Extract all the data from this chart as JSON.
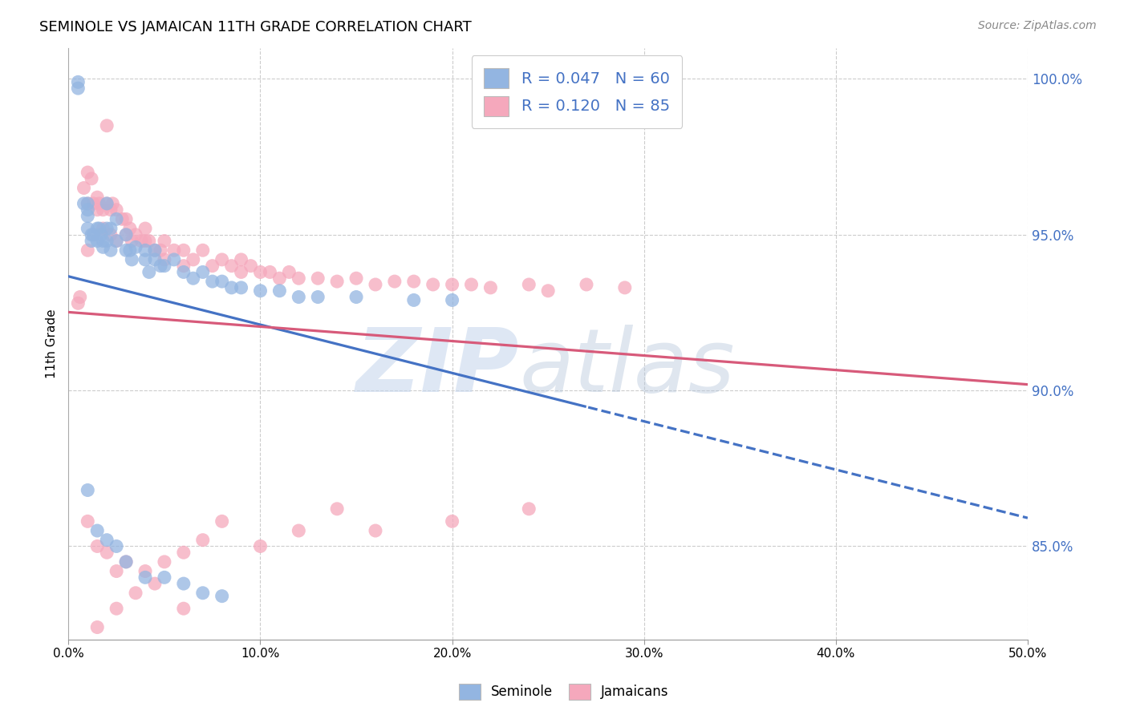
{
  "title": "SEMINOLE VS JAMAICAN 11TH GRADE CORRELATION CHART",
  "source": "Source: ZipAtlas.com",
  "xlabel_ticks": [
    "0.0%",
    "10.0%",
    "20.0%",
    "30.0%",
    "40.0%",
    "50.0%"
  ],
  "ylabel_ticks": [
    "85.0%",
    "90.0%",
    "95.0%",
    "100.0%"
  ],
  "ylabel_label": "11th Grade",
  "xlim": [
    0.0,
    0.5
  ],
  "ylim": [
    0.82,
    1.01
  ],
  "seminole_color": "#93b5e1",
  "jamaican_color": "#f5a8bc",
  "trend_seminole_color": "#4472c4",
  "trend_jamaican_color": "#d75a7a",
  "R_seminole": 0.047,
  "N_seminole": 60,
  "R_jamaican": 0.12,
  "N_jamaican": 85,
  "legend_label_seminole": "Seminole",
  "legend_label_jamaican": "Jamaicans",
  "background_color": "#ffffff",
  "seminole_x": [
    0.005,
    0.005,
    0.008,
    0.01,
    0.01,
    0.01,
    0.01,
    0.012,
    0.012,
    0.013,
    0.015,
    0.015,
    0.016,
    0.017,
    0.018,
    0.018,
    0.02,
    0.02,
    0.02,
    0.022,
    0.022,
    0.025,
    0.025,
    0.03,
    0.03,
    0.032,
    0.033,
    0.035,
    0.04,
    0.04,
    0.042,
    0.045,
    0.045,
    0.048,
    0.05,
    0.055,
    0.06,
    0.065,
    0.07,
    0.075,
    0.08,
    0.085,
    0.09,
    0.1,
    0.11,
    0.12,
    0.13,
    0.15,
    0.18,
    0.2,
    0.01,
    0.015,
    0.02,
    0.025,
    0.03,
    0.04,
    0.05,
    0.06,
    0.07,
    0.08
  ],
  "seminole_y": [
    0.997,
    0.999,
    0.96,
    0.96,
    0.958,
    0.956,
    0.952,
    0.948,
    0.95,
    0.95,
    0.952,
    0.948,
    0.952,
    0.95,
    0.948,
    0.946,
    0.96,
    0.952,
    0.948,
    0.952,
    0.945,
    0.955,
    0.948,
    0.945,
    0.95,
    0.945,
    0.942,
    0.946,
    0.942,
    0.945,
    0.938,
    0.942,
    0.945,
    0.94,
    0.94,
    0.942,
    0.938,
    0.936,
    0.938,
    0.935,
    0.935,
    0.933,
    0.933,
    0.932,
    0.932,
    0.93,
    0.93,
    0.93,
    0.929,
    0.929,
    0.868,
    0.855,
    0.852,
    0.85,
    0.845,
    0.84,
    0.84,
    0.838,
    0.835,
    0.834
  ],
  "jamaican_x": [
    0.005,
    0.006,
    0.008,
    0.01,
    0.01,
    0.01,
    0.012,
    0.013,
    0.015,
    0.015,
    0.016,
    0.018,
    0.018,
    0.02,
    0.02,
    0.022,
    0.022,
    0.023,
    0.025,
    0.025,
    0.028,
    0.03,
    0.03,
    0.032,
    0.033,
    0.035,
    0.038,
    0.04,
    0.04,
    0.042,
    0.045,
    0.048,
    0.05,
    0.05,
    0.055,
    0.06,
    0.06,
    0.065,
    0.07,
    0.075,
    0.08,
    0.085,
    0.09,
    0.09,
    0.095,
    0.1,
    0.105,
    0.11,
    0.115,
    0.12,
    0.13,
    0.14,
    0.15,
    0.16,
    0.17,
    0.18,
    0.19,
    0.2,
    0.21,
    0.22,
    0.24,
    0.25,
    0.27,
    0.29,
    0.01,
    0.015,
    0.02,
    0.025,
    0.03,
    0.04,
    0.05,
    0.06,
    0.07,
    0.08,
    0.1,
    0.12,
    0.14,
    0.16,
    0.2,
    0.24,
    0.015,
    0.025,
    0.035,
    0.045,
    0.06
  ],
  "jamaican_y": [
    0.928,
    0.93,
    0.965,
    0.97,
    0.96,
    0.945,
    0.968,
    0.96,
    0.962,
    0.958,
    0.96,
    0.958,
    0.952,
    0.985,
    0.96,
    0.958,
    0.95,
    0.96,
    0.958,
    0.948,
    0.955,
    0.955,
    0.95,
    0.952,
    0.948,
    0.95,
    0.948,
    0.952,
    0.948,
    0.948,
    0.945,
    0.945,
    0.948,
    0.942,
    0.945,
    0.945,
    0.94,
    0.942,
    0.945,
    0.94,
    0.942,
    0.94,
    0.942,
    0.938,
    0.94,
    0.938,
    0.938,
    0.936,
    0.938,
    0.936,
    0.936,
    0.935,
    0.936,
    0.934,
    0.935,
    0.935,
    0.934,
    0.934,
    0.934,
    0.933,
    0.934,
    0.932,
    0.934,
    0.933,
    0.858,
    0.85,
    0.848,
    0.842,
    0.845,
    0.842,
    0.845,
    0.848,
    0.852,
    0.858,
    0.85,
    0.855,
    0.862,
    0.855,
    0.858,
    0.862,
    0.824,
    0.83,
    0.835,
    0.838,
    0.83
  ]
}
